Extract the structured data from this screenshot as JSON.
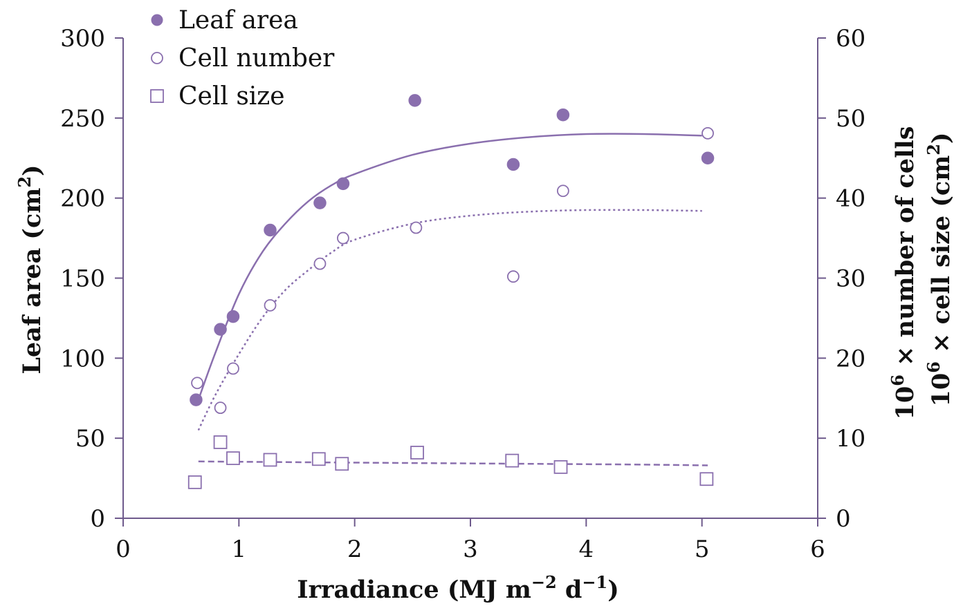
{
  "chart_data": {
    "type": "scatter",
    "xlabel": "Irradiance (MJ m",
    "xlabel_sup1": "−2",
    "xlabel_mid": " d",
    "xlabel_sup2": "−1",
    "xlabel_end": ")",
    "ylabel_left": "Leaf area (cm",
    "ylabel_left_sup": "2",
    "ylabel_left_end": ")",
    "ylabel_right_1_pre": "10",
    "ylabel_right_1_sup": "6",
    "ylabel_right_1_post": " × number of cells",
    "ylabel_right_2_pre": "10",
    "ylabel_right_2_sup": "6",
    "ylabel_right_2_post": " × cell size (cm",
    "ylabel_right_2_sup2": "2",
    "ylabel_right_2_end": ")",
    "xlim": [
      0,
      6
    ],
    "ylim_left": [
      0,
      300
    ],
    "ylim_right": [
      0,
      60
    ],
    "x_ticks": [
      "0",
      "1",
      "2",
      "3",
      "4",
      "5",
      "6"
    ],
    "y_left_ticks": [
      "0",
      "50",
      "100",
      "150",
      "200",
      "250",
      "300"
    ],
    "y_right_ticks": [
      "0",
      "10",
      "20",
      "30",
      "40",
      "50",
      "60"
    ],
    "grid": false,
    "legend_position": "top-left",
    "color": "#8a6fae",
    "series": [
      {
        "name": "Leaf area",
        "marker": "filled-circle",
        "axis": "left",
        "points": [
          [
            0.63,
            74
          ],
          [
            0.84,
            118
          ],
          [
            0.95,
            126
          ],
          [
            1.27,
            180
          ],
          [
            1.7,
            197
          ],
          [
            1.9,
            209
          ],
          [
            2.52,
            261
          ],
          [
            3.37,
            221
          ],
          [
            3.8,
            252
          ],
          [
            5.05,
            225
          ]
        ],
        "fit": [
          [
            0.65,
            74
          ],
          [
            0.8,
            104
          ],
          [
            1.0,
            140
          ],
          [
            1.2,
            166
          ],
          [
            1.4,
            184
          ],
          [
            1.6,
            198
          ],
          [
            1.8,
            208
          ],
          [
            2.0,
            215
          ],
          [
            2.5,
            227
          ],
          [
            3.0,
            234
          ],
          [
            3.5,
            238
          ],
          [
            4.0,
            240
          ],
          [
            4.5,
            240
          ],
          [
            5.0,
            239
          ]
        ]
      },
      {
        "name": "Cell number",
        "marker": "open-circle",
        "axis": "right",
        "points": [
          [
            0.64,
            16.9
          ],
          [
            0.84,
            13.8
          ],
          [
            0.95,
            18.7
          ],
          [
            1.27,
            26.6
          ],
          [
            1.7,
            31.8
          ],
          [
            1.9,
            35.0
          ],
          [
            2.53,
            36.3
          ],
          [
            3.37,
            30.2
          ],
          [
            3.8,
            40.9
          ],
          [
            5.05,
            48.1
          ]
        ],
        "fit": [
          [
            0.65,
            11.0
          ],
          [
            0.8,
            15.5
          ],
          [
            1.0,
            20.5
          ],
          [
            1.2,
            25.0
          ],
          [
            1.4,
            28.5
          ],
          [
            1.6,
            31.0
          ],
          [
            1.8,
            33.2
          ],
          [
            2.0,
            34.8
          ],
          [
            2.5,
            36.8
          ],
          [
            3.0,
            37.8
          ],
          [
            3.5,
            38.3
          ],
          [
            4.0,
            38.5
          ],
          [
            4.5,
            38.5
          ],
          [
            5.0,
            38.4
          ]
        ]
      },
      {
        "name": "Cell size",
        "marker": "open-square",
        "axis": "right",
        "points": [
          [
            0.62,
            4.5
          ],
          [
            0.84,
            9.5
          ],
          [
            0.95,
            7.5
          ],
          [
            1.27,
            7.3
          ],
          [
            1.69,
            7.4
          ],
          [
            1.89,
            6.8
          ],
          [
            2.54,
            8.2
          ],
          [
            3.36,
            7.2
          ],
          [
            3.78,
            6.4
          ],
          [
            5.04,
            4.9
          ]
        ],
        "fit": [
          [
            0.65,
            7.1
          ],
          [
            1.5,
            7.0
          ],
          [
            2.5,
            6.9
          ],
          [
            3.5,
            6.8
          ],
          [
            4.5,
            6.7
          ],
          [
            5.05,
            6.6
          ]
        ]
      }
    ]
  }
}
